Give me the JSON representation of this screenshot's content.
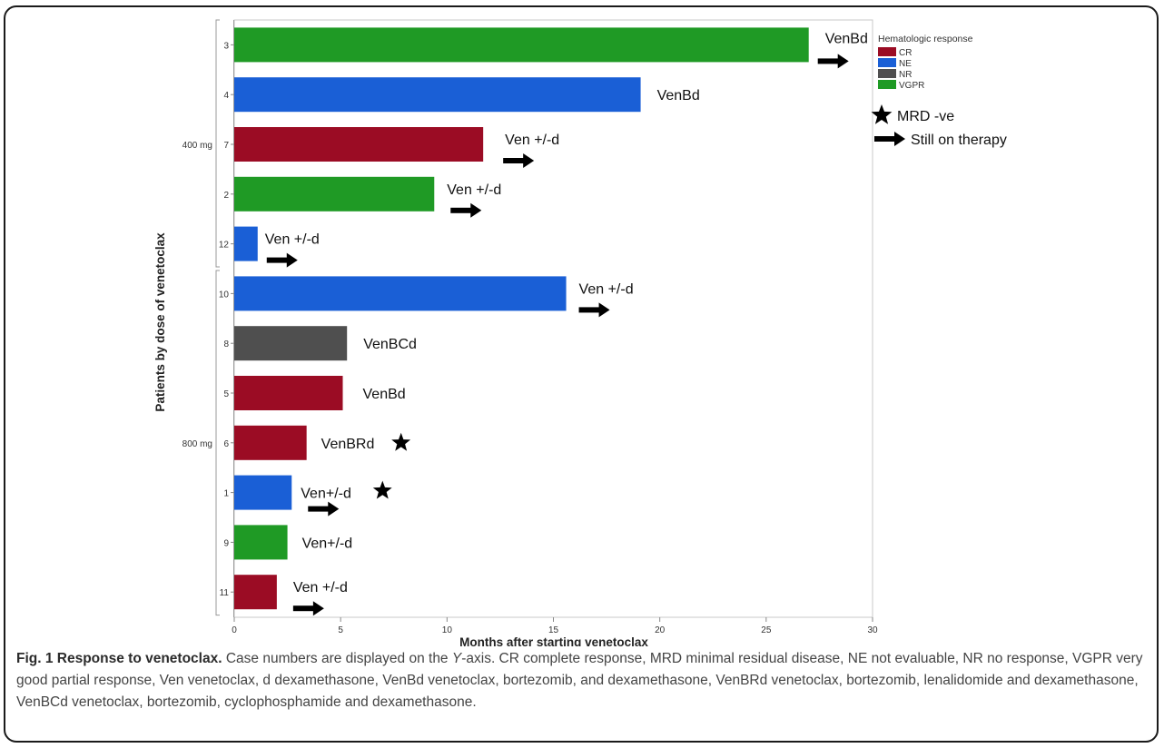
{
  "chart_data": {
    "type": "bar",
    "orientation": "horizontal",
    "xlabel": "Months after starting venetoclax",
    "ylabel": "Patients by dose of venetoclax",
    "xlim": [
      0,
      30
    ],
    "xticks": [
      0,
      5,
      10,
      15,
      20,
      25,
      30
    ],
    "groups": [
      {
        "label": "400 mg",
        "cases": [
          "3",
          "4",
          "7",
          "2",
          "12"
        ]
      },
      {
        "label": "800 mg",
        "cases": [
          "10",
          "8",
          "5",
          "6",
          "1",
          "9",
          "11"
        ]
      }
    ],
    "bars": [
      {
        "case": "3",
        "months": 27.0,
        "response": "VGPR",
        "regimen": "VenBd",
        "still_on_therapy": true,
        "mrd_negative": false
      },
      {
        "case": "4",
        "months": 19.1,
        "response": "NE",
        "regimen": "VenBd",
        "still_on_therapy": false,
        "mrd_negative": false
      },
      {
        "case": "7",
        "months": 11.7,
        "response": "CR",
        "regimen": "Ven +/-d",
        "still_on_therapy": true,
        "mrd_negative": false
      },
      {
        "case": "2",
        "months": 9.4,
        "response": "VGPR",
        "regimen": "Ven +/-d",
        "still_on_therapy": true,
        "mrd_negative": false
      },
      {
        "case": "12",
        "months": 1.1,
        "response": "NE",
        "regimen": "Ven +/-d",
        "still_on_therapy": true,
        "mrd_negative": false
      },
      {
        "case": "10",
        "months": 15.6,
        "response": "NE",
        "regimen": "Ven +/-d",
        "still_on_therapy": true,
        "mrd_negative": false
      },
      {
        "case": "8",
        "months": 5.3,
        "response": "NR",
        "regimen": "VenBCd",
        "still_on_therapy": false,
        "mrd_negative": false
      },
      {
        "case": "5",
        "months": 5.1,
        "response": "CR",
        "regimen": "VenBd",
        "still_on_therapy": false,
        "mrd_negative": false
      },
      {
        "case": "6",
        "months": 3.4,
        "response": "CR",
        "regimen": "VenBRd",
        "still_on_therapy": false,
        "mrd_negative": true
      },
      {
        "case": "1",
        "months": 2.7,
        "response": "NE",
        "regimen": "Ven+/-d",
        "still_on_therapy": true,
        "mrd_negative": true
      },
      {
        "case": "9",
        "months": 2.5,
        "response": "VGPR",
        "regimen": "Ven+/-d",
        "still_on_therapy": false,
        "mrd_negative": false
      },
      {
        "case": "11",
        "months": 2.0,
        "response": "CR",
        "regimen": "Ven +/-d",
        "still_on_therapy": true,
        "mrd_negative": false
      }
    ],
    "legend": {
      "title": "Hematologic response",
      "placement": "top-right",
      "entries": [
        {
          "label": "CR",
          "color": "#9b0c24"
        },
        {
          "label": "NE",
          "color": "#1a5fd6"
        },
        {
          "label": "NR",
          "color": "#4f4f4f"
        },
        {
          "label": "VGPR",
          "color": "#1f9a25"
        }
      ],
      "symbols": [
        {
          "label": "MRD -ve",
          "icon": "star-icon"
        },
        {
          "label": "Still on therapy",
          "icon": "right-arrow-icon"
        }
      ]
    }
  },
  "caption": {
    "title": "Fig. 1 Response to venetoclax.",
    "text_1": " Case numbers are displayed on the ",
    "y_italic": "Y",
    "text_2": "-axis. CR complete response, MRD minimal residual disease, NE not evaluable, NR no response, VGPR very good partial response, Ven venetoclax, d dexamethasone, VenBd venetoclax, bortezomib, and dexamethasone, VenBRd venetoclax, bortezomib, lenalidomide and dexamethasone, VenBCd venetoclax, bortezomib, cyclophosphamide and dexamethasone."
  }
}
